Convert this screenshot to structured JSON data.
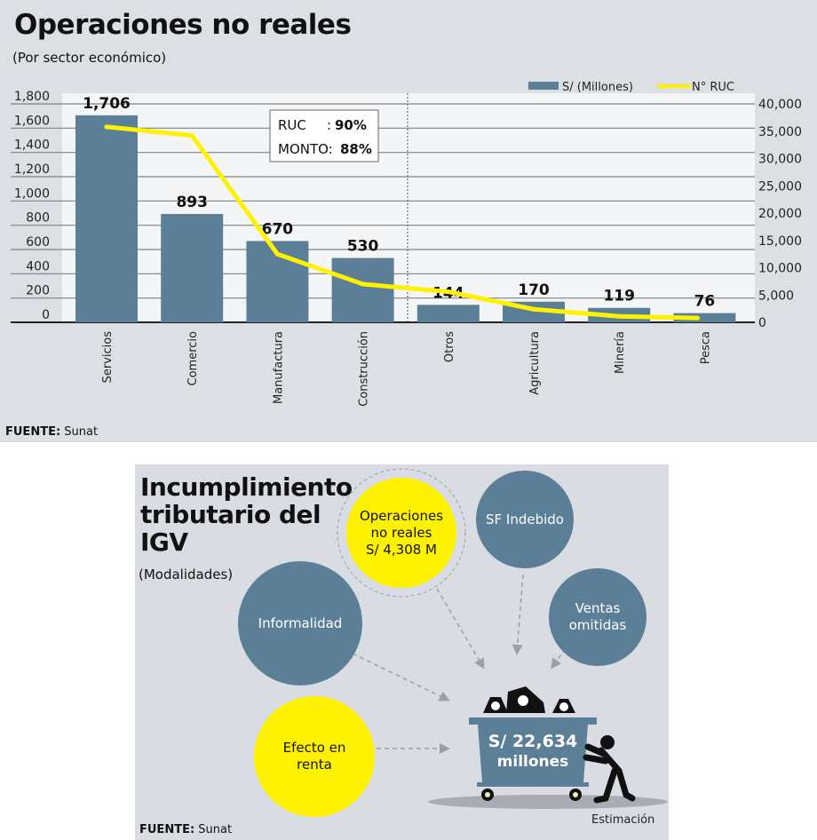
{
  "chart_data": {
    "type": "bar",
    "title": "Operaciones no reales",
    "subtitle": "(Por sector económico)",
    "categories": [
      "Servicios",
      "Comercio",
      "Manufactura",
      "Construcción",
      "Otros",
      "Agricultura",
      "Minería",
      "Pesca"
    ],
    "series": [
      {
        "name": "S/ (Millones)",
        "type": "bar",
        "axis": "left",
        "color": "#5b7f96",
        "values": [
          1706,
          893,
          670,
          530,
          144,
          170,
          119,
          76
        ],
        "labels": [
          "1,706",
          "893",
          "670",
          "530",
          "144",
          "170",
          "119",
          "76"
        ]
      },
      {
        "name": "N° RUC",
        "type": "line",
        "axis": "right",
        "color": "#fff200",
        "values": [
          35800,
          34200,
          12500,
          7000,
          5600,
          2400,
          1100,
          800
        ]
      }
    ],
    "left_axis": {
      "ylim": [
        0,
        1800
      ],
      "ticks": [
        "0",
        "200",
        "400",
        "600",
        "800",
        "1,000",
        "1,200",
        "1,400",
        "1,600",
        "1,800"
      ]
    },
    "right_axis": {
      "ylim": [
        0,
        40000
      ],
      "ticks": [
        "0",
        "5,000",
        "10,000",
        "15,000",
        "20,000",
        "25,000",
        "30,000",
        "35,000",
        "40,000"
      ]
    },
    "legend": "top-right",
    "grid": true,
    "annotation": {
      "ruc_label": "RUC",
      "ruc_sep": ":",
      "ruc_value": "90%",
      "monto_label": "MONTO:",
      "monto_value": "88%"
    },
    "source_label": "FUENTE:",
    "source": "Sunat"
  },
  "diagram": {
    "title_lines": [
      "Incumplimiento",
      "tributario del",
      "IGV"
    ],
    "subtitle": "(Modalidades)",
    "circles": {
      "operaciones": [
        "Operaciones",
        "no reales",
        "S/ 4,308 M"
      ],
      "sf": "SF Indebido",
      "informalidad": "Informalidad",
      "ventas": [
        "Ventas",
        "omitidas"
      ],
      "efecto": [
        "Efecto en",
        "renta"
      ]
    },
    "total": [
      "S/ 22,634",
      "millones"
    ],
    "estimacion": "Estimación",
    "source_label": "FUENTE:",
    "source": "Sunat",
    "colors": {
      "blue": "#5b7f96",
      "yellow": "#fff200"
    }
  }
}
